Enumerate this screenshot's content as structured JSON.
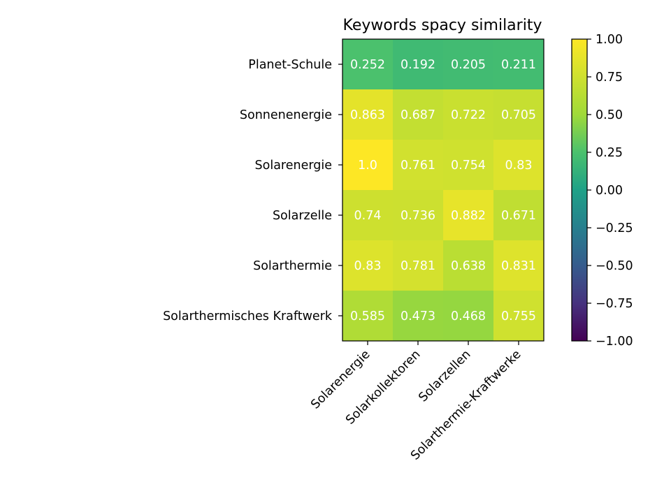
{
  "chart_data": {
    "type": "heatmap",
    "title": "Keywords spacy similarity",
    "xlabel": "",
    "ylabel": "",
    "x_categories": [
      "Solarenergie",
      "Solarkollektoren",
      "Solarzellen",
      "Solarthermie-Kraftwerke"
    ],
    "y_categories": [
      "Planet-Schule",
      "Sonnenenergie",
      "Solarenergie",
      "Solarzelle",
      "Solarthermie",
      "Solarthermisches Kraftwerk"
    ],
    "values": [
      [
        0.252,
        0.192,
        0.205,
        0.211
      ],
      [
        0.863,
        0.687,
        0.722,
        0.705
      ],
      [
        1.0,
        0.761,
        0.754,
        0.83
      ],
      [
        0.74,
        0.736,
        0.882,
        0.671
      ],
      [
        0.83,
        0.781,
        0.638,
        0.831
      ],
      [
        0.585,
        0.473,
        0.468,
        0.755
      ]
    ],
    "cell_labels": [
      [
        "0.252",
        "0.192",
        "0.205",
        "0.211"
      ],
      [
        "0.863",
        "0.687",
        "0.722",
        "0.705"
      ],
      [
        "1.0",
        "0.761",
        "0.754",
        "0.83"
      ],
      [
        "0.74",
        "0.736",
        "0.882",
        "0.671"
      ],
      [
        "0.83",
        "0.781",
        "0.638",
        "0.831"
      ],
      [
        "0.585",
        "0.473",
        "0.468",
        "0.755"
      ]
    ],
    "colormap": "viridis",
    "value_range": [
      -1.0,
      1.0
    ],
    "colorbar_ticks": [
      "1.00",
      "0.75",
      "0.50",
      "0.25",
      "0.00",
      "−0.25",
      "−0.50",
      "−0.75",
      "−1.00"
    ],
    "colorbar_tick_values": [
      1.0,
      0.75,
      0.5,
      0.25,
      0.0,
      -0.25,
      -0.5,
      -0.75,
      -1.0
    ],
    "x_tick_rotation_deg": 45,
    "grid": false
  }
}
